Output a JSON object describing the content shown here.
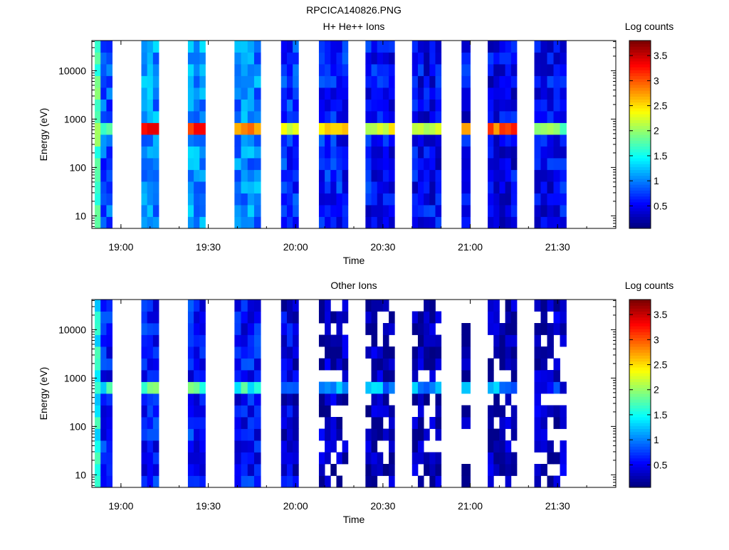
{
  "figure": {
    "title": "RPCICA140826.PNG"
  },
  "chart_data": [
    {
      "type": "heatmap",
      "title": "H+ He++ Ions",
      "xlabel": "Time",
      "ylabel": "Energy (eV)",
      "y_scale": "log",
      "ylim": [
        5.5,
        42000
      ],
      "x_tick_labels": [
        "19:00",
        "19:30",
        "20:00",
        "20:30",
        "21:00",
        "21:30"
      ],
      "y_tick_labels": [
        "10",
        "100",
        "1000",
        "10000"
      ],
      "colorbar": {
        "label": "Log counts",
        "range": [
          0.05,
          3.8
        ],
        "tick_labels": [
          "0.5",
          "1",
          "1.5",
          "2",
          "2.5",
          "3",
          "3.5"
        ],
        "colormap": "jet"
      },
      "scans": [
        {
          "start": "18:51",
          "end": "18:53",
          "peak": 2.0,
          "bg": 1.8
        },
        {
          "start": "18:53",
          "end": "18:57",
          "peak": 1.9,
          "bg": 0.8
        },
        {
          "start": "19:07",
          "end": "19:13",
          "peak": 3.6,
          "bg": 1.05
        },
        {
          "start": "19:23",
          "end": "19:29",
          "peak": 3.4,
          "bg": 1.1
        },
        {
          "start": "19:39",
          "end": "19:48",
          "peak": 2.9,
          "bg": 1.0
        },
        {
          "start": "19:55",
          "end": "20:01",
          "peak": 2.2,
          "bg": 0.7
        },
        {
          "start": "20:08",
          "end": "20:18",
          "peak": 2.6,
          "bg": 0.6
        },
        {
          "start": "20:24",
          "end": "20:34",
          "peak": 2.4,
          "bg": 0.55
        },
        {
          "start": "20:40",
          "end": "20:50",
          "peak": 2.3,
          "bg": 0.5
        },
        {
          "start": "20:57",
          "end": "21:00",
          "peak": 2.5,
          "bg": 0.5
        },
        {
          "start": "21:06",
          "end": "21:16",
          "peak": 3.0,
          "bg": 0.45
        },
        {
          "start": "21:22",
          "end": "21:33",
          "peak": 2.0,
          "bg": 0.5
        }
      ]
    },
    {
      "type": "heatmap",
      "title": "Other Ions",
      "xlabel": "Time",
      "ylabel": "Energy (eV)",
      "y_scale": "log",
      "ylim": [
        5.5,
        42000
      ],
      "x_tick_labels": [
        "19:00",
        "19:30",
        "20:00",
        "20:30",
        "21:00",
        "21:30"
      ],
      "y_tick_labels": [
        "10",
        "100",
        "1000",
        "10000"
      ],
      "colorbar": {
        "label": "Log counts",
        "range": [
          0.05,
          3.8
        ],
        "tick_labels": [
          "0.5",
          "1",
          "1.5",
          "2",
          "2.5",
          "3",
          "3.5"
        ],
        "colormap": "jet"
      },
      "scans": [
        {
          "start": "18:51",
          "end": "18:53",
          "peak": 1.7,
          "bg": 1.5
        },
        {
          "start": "18:53",
          "end": "18:57",
          "peak": 1.5,
          "bg": 0.6
        },
        {
          "start": "19:07",
          "end": "19:13",
          "peak": 1.8,
          "bg": 0.6
        },
        {
          "start": "19:23",
          "end": "19:29",
          "peak": 1.7,
          "bg": 0.6
        },
        {
          "start": "19:39",
          "end": "19:48",
          "peak": 1.6,
          "bg": 0.55
        },
        {
          "start": "19:55",
          "end": "20:01",
          "peak": 0.7,
          "bg": 0.4
        },
        {
          "start": "20:08",
          "end": "20:18",
          "peak": 1.2,
          "bg": 0.25
        },
        {
          "start": "20:24",
          "end": "20:34",
          "peak": 1.1,
          "bg": 0.2
        },
        {
          "start": "20:40",
          "end": "20:50",
          "peak": 1.1,
          "bg": 0.2
        },
        {
          "start": "20:57",
          "end": "21:00",
          "peak": 1.2,
          "bg": 0.2
        },
        {
          "start": "21:06",
          "end": "21:16",
          "peak": 1.1,
          "bg": 0.2
        },
        {
          "start": "21:22",
          "end": "21:33",
          "peak": 0.6,
          "bg": 0.25
        }
      ]
    }
  ]
}
